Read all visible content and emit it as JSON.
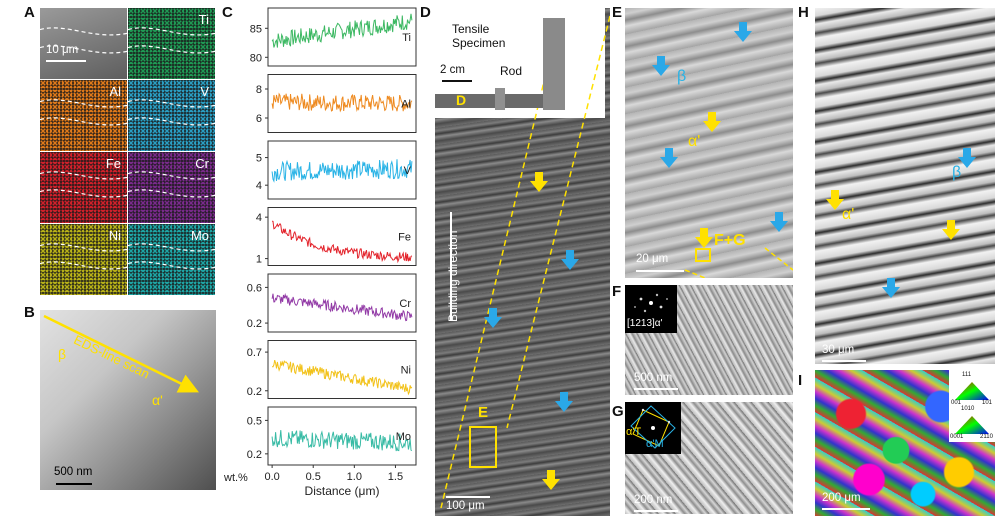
{
  "panel_labels": {
    "A": "A",
    "B": "B",
    "C": "C",
    "D": "D",
    "E": "E",
    "F": "F",
    "G": "G",
    "H": "H",
    "I": "I"
  },
  "panel_a": {
    "scale_bar": "10 μm",
    "tiles": [
      {
        "element": "",
        "color": "#777777"
      },
      {
        "element": "Ti",
        "color": "#1f9a55"
      },
      {
        "element": "Al",
        "color": "#e07a1a"
      },
      {
        "element": "V",
        "color": "#2a9fc4"
      },
      {
        "element": "Fe",
        "color": "#d1202a"
      },
      {
        "element": "Cr",
        "color": "#7a2a8c"
      },
      {
        "element": "Ni",
        "color": "#b9b218"
      },
      {
        "element": "Mo",
        "color": "#1ea6a6"
      }
    ]
  },
  "panel_b": {
    "scan_label": "EDS-line scan",
    "beta": "β",
    "alpha_prime": "α'",
    "scale_bar": "500 nm"
  },
  "chart_data": {
    "type": "line",
    "xlabel": "Distance (μm)",
    "ylabel": "wt.%",
    "x_ticks": [
      "0.0",
      "0.5",
      "1.0",
      "1.5"
    ],
    "xlim": [
      -0.05,
      1.75
    ],
    "series": [
      {
        "name": "Ti",
        "color": "#3cb862",
        "yticks": [
          "85",
          "80"
        ],
        "ytickvals": [
          85,
          80
        ],
        "ylim": [
          78.5,
          88.5
        ],
        "start": 82.8,
        "end": 86.3,
        "noise": 1.5
      },
      {
        "name": "Al",
        "color": "#ee8a20",
        "yticks": [
          "8",
          "6"
        ],
        "ytickvals": [
          8,
          6
        ],
        "ylim": [
          5,
          9
        ],
        "start": 7.1,
        "end": 7.0,
        "noise": 0.6
      },
      {
        "name": "V",
        "color": "#29b3e6",
        "yticks": [
          "5",
          "4"
        ],
        "ytickvals": [
          5,
          4
        ],
        "ylim": [
          3.5,
          5.6
        ],
        "start": 4.5,
        "end": 4.6,
        "noise": 0.35
      },
      {
        "name": "Fe",
        "color": "#e3232b",
        "yticks": [
          "4",
          "1"
        ],
        "ytickvals": [
          4,
          1
        ],
        "ylim": [
          0.5,
          4.7
        ],
        "start": 3.6,
        "end": 1.1,
        "noise": 0.35
      },
      {
        "name": "Cr",
        "color": "#923aa6",
        "yticks": [
          "0.6",
          "0.2"
        ],
        "ytickvals": [
          0.6,
          0.2
        ],
        "ylim": [
          0.1,
          0.75
        ],
        "start": 0.48,
        "end": 0.27,
        "noise": 0.06
      },
      {
        "name": "Ni",
        "color": "#f2c21a",
        "yticks": [
          "0.7",
          "0.2"
        ],
        "ytickvals": [
          0.7,
          0.2
        ],
        "ylim": [
          0.1,
          0.85
        ],
        "start": 0.55,
        "end": 0.22,
        "noise": 0.07
      },
      {
        "name": "Mo",
        "color": "#38bba5",
        "yticks": [
          "0.5",
          "0.2"
        ],
        "ytickvals": [
          0.5,
          0.2
        ],
        "ylim": [
          0.1,
          0.62
        ],
        "start": 0.34,
        "end": 0.3,
        "noise": 0.08
      }
    ]
  },
  "panel_d": {
    "inset_label_specimen": "Tensile\nSpecimen",
    "inset_label_rod": "Rod",
    "inset_scale": "2 cm",
    "inset_d_mark": "D",
    "building_direction": "Building direction",
    "box_label": "E",
    "scale_bar": "100 μm"
  },
  "panel_e": {
    "beta": "β",
    "alpha_prime": "α'",
    "fg_label": "F+G",
    "scale_bar": "20 μm"
  },
  "panel_f": {
    "zone_axis": "[1213]α'",
    "scale_bar": "500 nm"
  },
  "panel_g": {
    "alpha_t": "α'T",
    "alpha_m": "α'M",
    "scale_bar": "200 nm"
  },
  "panel_h": {
    "beta": "β",
    "alpha_prime": "α'",
    "scale_bar": "30 μm"
  },
  "panel_i": {
    "legend_top": "111",
    "legend_top_left": "001",
    "legend_top_right": "101",
    "legend_bottom": "1010",
    "legend_bottom_left": "0001",
    "legend_bottom_right": "2110",
    "scale_bar": "200 μm"
  }
}
